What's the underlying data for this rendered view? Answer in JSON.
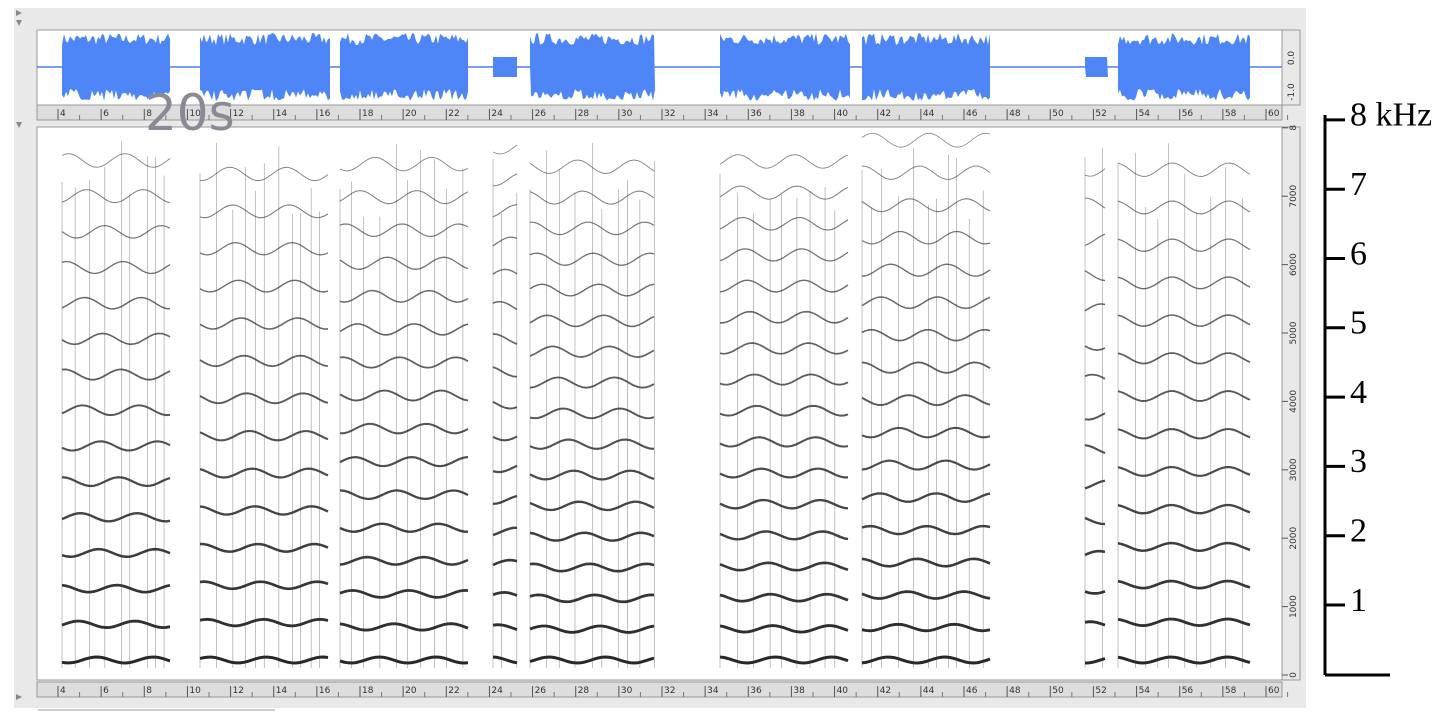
{
  "waveform": {
    "amplitude_labels": [
      "0.0",
      "-1.0"
    ]
  },
  "time_ruler": {
    "ticks": [
      "4",
      "6",
      "8",
      "10",
      "12",
      "14",
      "16",
      "18",
      "20",
      "22",
      "24",
      "26",
      "28",
      "30",
      "32",
      "34",
      "36",
      "38",
      "40",
      "42",
      "44",
      "46",
      "48",
      "50",
      "52",
      "54",
      "56",
      "58",
      "60"
    ]
  },
  "annotation": "20s",
  "spectrogram": {
    "freq_ticks": [
      "0",
      "1000",
      "2000",
      "3000",
      "4000",
      "5000",
      "6000",
      "7000",
      "8"
    ]
  },
  "frequency_scale": {
    "labels": [
      "1",
      "2",
      "3",
      "4",
      "5",
      "6",
      "7",
      "8 kHz"
    ]
  }
}
